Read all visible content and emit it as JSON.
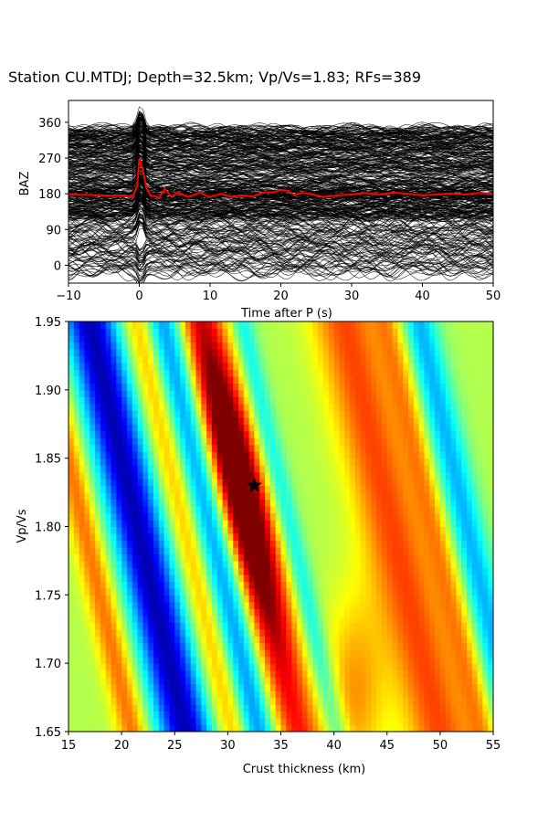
{
  "chart_data": [
    {
      "type": "line",
      "title": "Station CU.MTDJ; Depth=32.5km; Vp/Vs=1.83; RFs=389",
      "xlabel": "Time after P (s)",
      "ylabel": "BAZ",
      "xlim": [
        -10,
        50
      ],
      "ylim": [
        -45,
        415
      ],
      "xticks": [
        -10,
        0,
        10,
        20,
        30,
        40,
        50
      ],
      "yticks": [
        0,
        90,
        180,
        270,
        360
      ],
      "grid": false,
      "series": [
        {
          "role": "individual receiver function traces",
          "count": 389,
          "color": "#000000"
        },
        {
          "role": "stacked receiver function",
          "color": "#ff0000",
          "x": [
            -10,
            -7,
            -4,
            -2,
            -1,
            -0.3,
            0,
            0.4,
            1,
            1.6,
            2.2,
            2.8,
            3.6,
            4.5,
            5.5,
            7,
            8.5,
            10,
            11.5,
            13,
            14.5,
            16,
            17.5,
            19,
            20,
            21,
            22,
            23,
            24,
            25,
            26,
            28,
            30,
            32,
            34,
            36,
            38,
            40,
            42,
            44,
            46,
            48,
            50
          ],
          "y": [
            178,
            177,
            175,
            176,
            172,
            200,
            268,
            248,
            195,
            175,
            174,
            170,
            193,
            173,
            183,
            172,
            183,
            172,
            180,
            172,
            176,
            173,
            183,
            184,
            190,
            187,
            176,
            183,
            180,
            176,
            172,
            176,
            178,
            182,
            178,
            183,
            180,
            176,
            178,
            181,
            178,
            182,
            180
          ]
        }
      ]
    },
    {
      "type": "heatmap",
      "xlabel": "Crust thickness (km)",
      "ylabel": "Vp/Vs",
      "xlim": [
        15,
        55
      ],
      "ylim": [
        1.65,
        1.95
      ],
      "xticks": [
        15,
        20,
        25,
        30,
        35,
        40,
        45,
        50,
        55
      ],
      "yticks": [
        1.65,
        1.7,
        1.75,
        1.8,
        1.85,
        1.9,
        1.95
      ],
      "colormap": "jet",
      "best_fit": {
        "crust_thickness_km": 32.5,
        "vp_vs": 1.83,
        "marker": "star",
        "color": "#000000"
      }
    }
  ]
}
